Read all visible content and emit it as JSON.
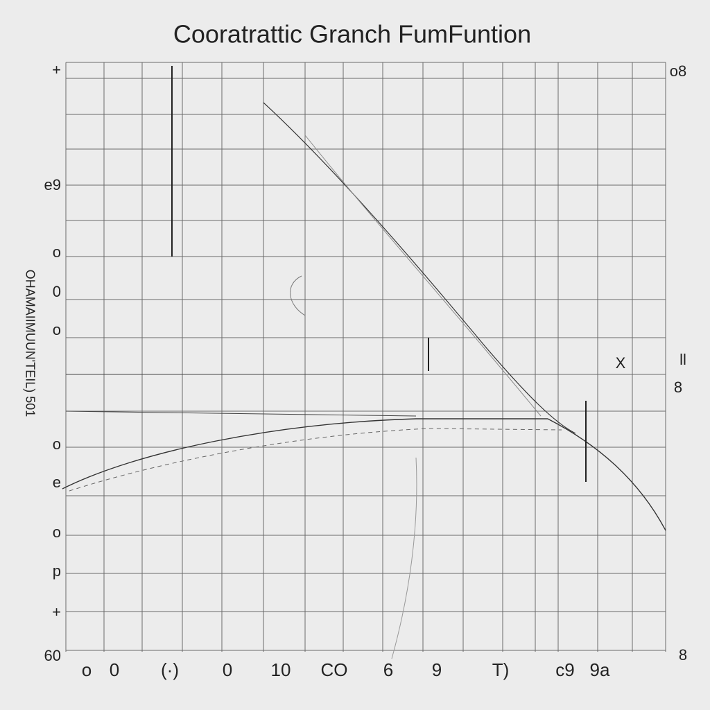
{
  "title": "Cooratrattic Granch FumFuntion",
  "y_axis_label": "OHAMAIIMUUN'TEIL) 501",
  "left_labels": [
    "+",
    "e9",
    "o",
    "0",
    "o",
    "o",
    "e",
    "o",
    "p",
    "+",
    "60"
  ],
  "right_labels": [
    "o8",
    "X",
    "ll",
    "8",
    "8"
  ],
  "bottom_labels": [
    "o",
    "0",
    "(·)",
    "0",
    "10",
    "CO",
    "6",
    "9",
    "T)",
    "c9",
    "9a"
  ]
}
